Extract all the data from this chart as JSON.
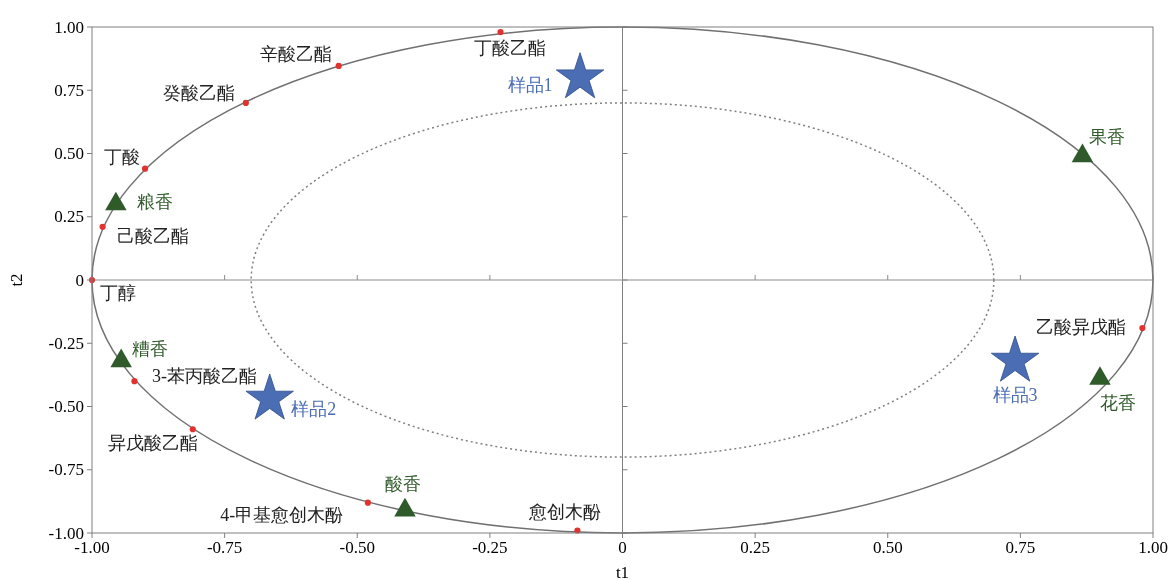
{
  "chart_data": {
    "type": "scatter",
    "xlabel": "t1",
    "ylabel": "t2",
    "xlim": [
      -1,
      1
    ],
    "ylim": [
      -1,
      1
    ],
    "xticks": [
      {
        "value": -1,
        "label": "-1.00"
      },
      {
        "value": -0.75,
        "label": "-0.75"
      },
      {
        "value": -0.5,
        "label": "-0.50"
      },
      {
        "value": -0.25,
        "label": "-0.25"
      },
      0,
      {
        "value": 0.25,
        "label": "0.25"
      },
      {
        "value": 0.5,
        "label": "0.50"
      },
      {
        "value": 0.75,
        "label": "0.75"
      },
      {
        "value": 1,
        "label": "1.00"
      }
    ],
    "yticks": [
      {
        "value": -1,
        "label": "-1.00"
      },
      {
        "value": -0.75,
        "label": "-0.75"
      },
      {
        "value": -0.5,
        "label": "-0.50"
      },
      {
        "value": -0.25,
        "label": "-0.25"
      },
      0,
      {
        "value": 0.25,
        "label": "0.25"
      },
      {
        "value": 0.5,
        "label": "0.50"
      },
      {
        "value": 0.75,
        "label": "0.75"
      },
      {
        "value": 1,
        "label": "1.00"
      }
    ],
    "grid": false,
    "ref_lines": [
      {
        "axis": "x",
        "value": 0,
        "color": "#808080"
      },
      {
        "axis": "y",
        "value": 0,
        "color": "#8c8c8c"
      }
    ],
    "series": [
      {
        "color": "#e0332f",
        "marker": "circle",
        "x": [
          -0.23,
          -0.535,
          -0.71,
          -0.9,
          -0.98,
          -1.0,
          -0.92,
          -0.81,
          -0.48,
          -0.085,
          0.98
        ],
        "values": [
          0.98,
          0.846,
          0.7,
          0.44,
          0.21,
          0,
          -0.4,
          -0.59,
          -0.88,
          -0.99,
          -0.19
        ]
      },
      {
        "color": "#2f5a2a",
        "marker": "triangle",
        "x": [
          0.867,
          -0.955,
          -0.945,
          -0.41,
          0.9
        ],
        "values": [
          0.49,
          0.3,
          -0.32,
          -0.91,
          -0.39
        ]
      },
      {
        "color": "#4a6db3",
        "marker": "star",
        "x": [
          -0.08,
          -0.665,
          0.74
        ],
        "values": [
          0.8,
          -0.47,
          -0.32
        ]
      }
    ],
    "annotations": [
      {
        "text": "丁酸乙酯",
        "x": -0.23,
        "y": 0.98
      },
      {
        "text": "辛酸乙酯",
        "x": -0.535,
        "y": 0.846
      },
      {
        "text": "癸酸乙酯",
        "x": -0.71,
        "y": 0.7
      },
      {
        "text": "丁酸",
        "x": -0.9,
        "y": 0.44
      },
      {
        "text": "己酸乙酯",
        "x": -0.98,
        "y": 0.21
      },
      {
        "text": "丁醇",
        "x": -1.0,
        "y": 0
      },
      {
        "text": "3-苯丙酸乙酯",
        "x": -0.92,
        "y": -0.4
      },
      {
        "text": "异戊酸乙酯",
        "x": -0.81,
        "y": -0.59
      },
      {
        "text": "4-甲基愈创木酚",
        "x": -0.48,
        "y": -0.88
      },
      {
        "text": "愈创木酚",
        "x": -0.085,
        "y": -0.99
      },
      {
        "text": "乙酸异戊酯",
        "x": 0.98,
        "y": -0.19
      },
      {
        "text": "果香",
        "x": 0.867,
        "y": 0.49
      },
      {
        "text": "粮香",
        "x": -0.955,
        "y": 0.3
      },
      {
        "text": "糟香",
        "x": -0.945,
        "y": -0.32
      },
      {
        "text": "酸香",
        "x": -0.41,
        "y": -0.91
      },
      {
        "text": "花香",
        "x": 0.9,
        "y": -0.39
      },
      {
        "text": "样品1",
        "x": -0.08,
        "y": 0.8
      },
      {
        "text": "样品2",
        "x": -0.665,
        "y": -0.47
      },
      {
        "text": "样品3",
        "x": 0.74,
        "y": -0.32
      }
    ]
  }
}
